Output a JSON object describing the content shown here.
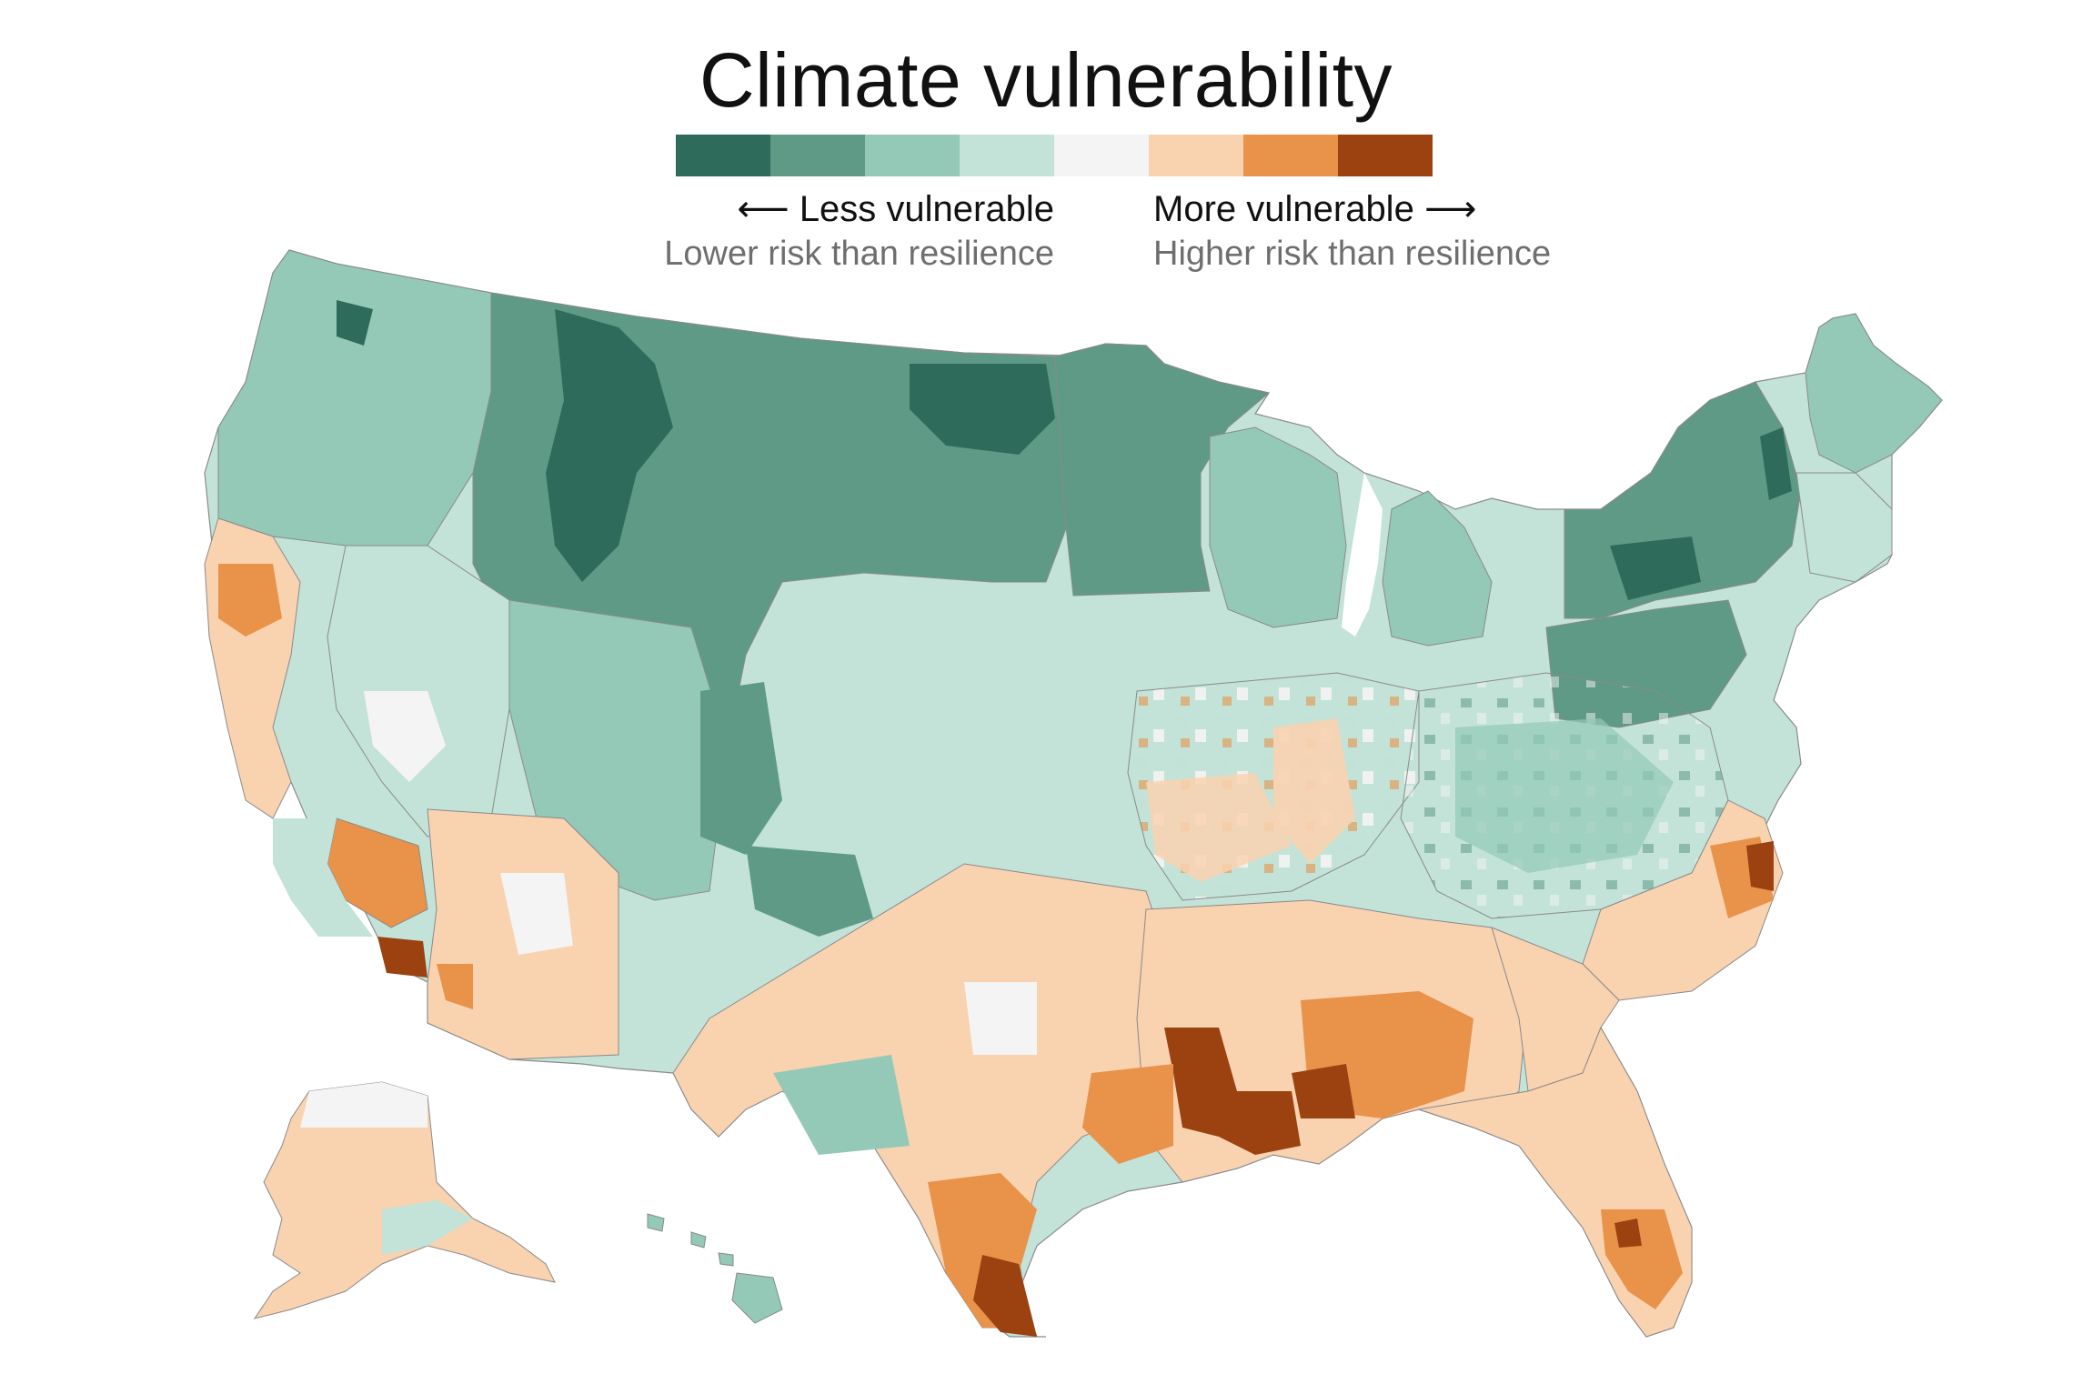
{
  "title": "Climate vulnerability",
  "legend": {
    "colors": [
      "#2f6b5a",
      "#5f9a86",
      "#93c9b6",
      "#c3e3d8",
      "#f4f4f4",
      "#f9d2b0",
      "#e8924a",
      "#9b4210"
    ],
    "less_label": "Less vulnerable",
    "less_sub": "Lower risk than resilience",
    "more_label": "More vulnerable",
    "more_sub": "Higher risk than resilience",
    "left_arrow": "⟵",
    "right_arrow": "⟶"
  },
  "map": {
    "border_color": "#8a8a8a",
    "regions": [
      {
        "name": "lower-48",
        "level": 3
      },
      {
        "name": "northern-plains",
        "level": 1
      },
      {
        "name": "montana-core",
        "level": 0
      },
      {
        "name": "dakotas-core",
        "level": 0
      },
      {
        "name": "minnesota",
        "level": 1
      },
      {
        "name": "wisconsin",
        "level": 2
      },
      {
        "name": "michigan-lower",
        "level": 2
      },
      {
        "name": "michigan-upper",
        "level": 2
      },
      {
        "name": "new-york",
        "level": 1
      },
      {
        "name": "new-york-core",
        "level": 0
      },
      {
        "name": "new-england",
        "level": 2
      },
      {
        "name": "vermont",
        "level": 0
      },
      {
        "name": "maine",
        "level": 2
      },
      {
        "name": "pennsylvania",
        "level": 1
      },
      {
        "name": "wyoming-colorado",
        "level": 1
      },
      {
        "name": "oregon-washington",
        "level": 2
      },
      {
        "name": "nevada",
        "level": 4
      },
      {
        "name": "california-north",
        "level": 5
      },
      {
        "name": "california-south",
        "level": 6
      },
      {
        "name": "imperial",
        "level": 7
      },
      {
        "name": "arizona",
        "level": 5
      },
      {
        "name": "texas",
        "level": 5
      },
      {
        "name": "south-texas",
        "level": 6
      },
      {
        "name": "rio-grande",
        "level": 7
      },
      {
        "name": "gulf-coast",
        "level": 6
      },
      {
        "name": "louisiana-delta",
        "level": 7
      },
      {
        "name": "alabama",
        "level": 6
      },
      {
        "name": "alabama-core",
        "level": 7
      },
      {
        "name": "georgia",
        "level": 5
      },
      {
        "name": "florida",
        "level": 5
      },
      {
        "name": "south-florida",
        "level": 6
      },
      {
        "name": "carolinas",
        "level": 5
      },
      {
        "name": "outer-banks",
        "level": 7
      },
      {
        "name": "midwest",
        "level": 5
      },
      {
        "name": "appalachia",
        "level": 3
      },
      {
        "name": "alaska",
        "level": 5
      },
      {
        "name": "alaska-north",
        "level": 4
      },
      {
        "name": "hawaii",
        "level": 2
      }
    ]
  }
}
